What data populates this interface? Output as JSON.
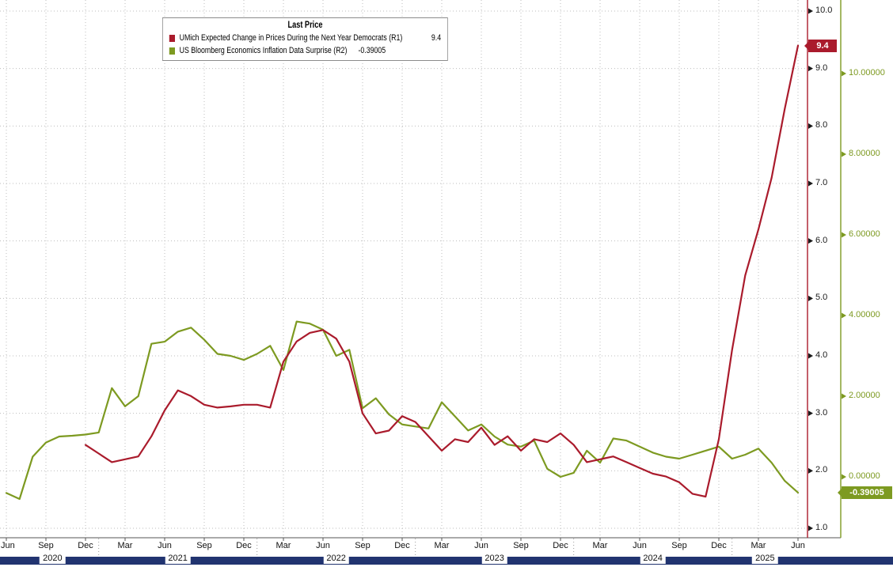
{
  "chart_data": {
    "type": "line",
    "title": "",
    "legend": {
      "title": "Last Price",
      "position": "top-left",
      "entries": [
        {
          "label": "UMich Expected Change in Prices During the Next Year Democrats (R1)",
          "value": "9.4"
        },
        {
          "label": "US Bloomberg Economics Inflation Data Surprise (R2)",
          "value": "-0.39005"
        }
      ]
    },
    "x_axis": {
      "start": "Jun 2020",
      "end": "Jun 2025",
      "tick_interval": "quarterly",
      "month_tick_labels": [
        "Jun",
        "Sep",
        "Dec",
        "Mar",
        "Jun",
        "Sep",
        "Dec",
        "Mar",
        "Jun",
        "Sep",
        "Dec",
        "Mar",
        "Jun",
        "Sep",
        "Dec",
        "Mar",
        "Jun",
        "Sep",
        "Dec",
        "Mar",
        "Jun"
      ],
      "year_labels": [
        "2020",
        "2021",
        "2022",
        "2023",
        "2024",
        "2025"
      ]
    },
    "axes": {
      "r1": {
        "name": "R1",
        "side": "right-inner",
        "color": "#aa1b2c",
        "label_color": "#1a1a1a",
        "tick_labels": [
          "10.0",
          "9.0",
          "8.0",
          "7.0",
          "6.0",
          "5.0",
          "4.0",
          "3.0",
          "2.0",
          "1.0"
        ],
        "tick_values": [
          10,
          9,
          8,
          7,
          6,
          5,
          4,
          3,
          2,
          1
        ],
        "min": 1.0,
        "max": 10.0,
        "last_value": 9.4,
        "last_value_label": "9.4"
      },
      "r2": {
        "name": "R2",
        "side": "right-outer",
        "color": "#7d9a21",
        "label_color": "#7d9a21",
        "tick_labels": [
          "10.00000",
          "8.00000",
          "6.00000",
          "4.00000",
          "2.00000",
          "0.00000"
        ],
        "tick_values": [
          10,
          8,
          6,
          4,
          2,
          0
        ],
        "last_value": -0.39005,
        "last_value_label": "-0.39005"
      }
    },
    "grid": {
      "horizontal": true,
      "vertical": true,
      "style": "dotted",
      "color": "#bdbdbd"
    },
    "bottom_bar_color": "#213470",
    "series": [
      {
        "name": "UMich Expected Change in Prices During the Next Year Democrats",
        "data_name": "umich-democrats-line",
        "axis": "r1",
        "color": "#aa1b2c",
        "x_start": "2020-12",
        "start_month_index": 6,
        "x_step_months": 1,
        "values": [
          2.45,
          2.3,
          2.15,
          2.2,
          2.25,
          2.6,
          3.05,
          3.4,
          3.3,
          3.15,
          3.1,
          3.12,
          3.15,
          3.15,
          3.1,
          3.9,
          4.25,
          4.4,
          4.45,
          4.3,
          3.9,
          3.0,
          2.65,
          2.7,
          2.95,
          2.85,
          2.6,
          2.35,
          2.55,
          2.5,
          2.75,
          2.45,
          2.6,
          2.35,
          2.55,
          2.5,
          2.65,
          2.45,
          2.15,
          2.2,
          2.25,
          2.15,
          2.05,
          1.95,
          1.9,
          1.8,
          1.6,
          1.55,
          2.55,
          4.1,
          5.4,
          6.2,
          7.1,
          8.3,
          9.4
        ]
      },
      {
        "name": "US Bloomberg Economics Inflation Data Surprise",
        "data_name": "inflation-surprise-line",
        "axis": "r2",
        "color": "#7d9a21",
        "x_start": "2020-06",
        "start_month_index": 0,
        "x_step_months": 1,
        "values": [
          -0.4,
          -0.55,
          0.5,
          0.85,
          1.0,
          1.02,
          1.05,
          1.1,
          2.2,
          1.75,
          2.0,
          3.3,
          3.35,
          3.6,
          3.7,
          3.4,
          3.05,
          3.0,
          2.9,
          3.05,
          3.25,
          2.65,
          3.85,
          3.8,
          3.65,
          3.0,
          3.15,
          1.7,
          1.95,
          1.55,
          1.3,
          1.25,
          1.2,
          1.85,
          1.5,
          1.15,
          1.3,
          1.0,
          0.8,
          0.75,
          0.9,
          0.2,
          0.0,
          0.1,
          0.65,
          0.35,
          0.95,
          0.9,
          0.75,
          0.6,
          0.5,
          0.45,
          0.55,
          0.65,
          0.75,
          0.45,
          0.55,
          0.7,
          0.35,
          -0.1,
          -0.39005
        ]
      }
    ]
  }
}
